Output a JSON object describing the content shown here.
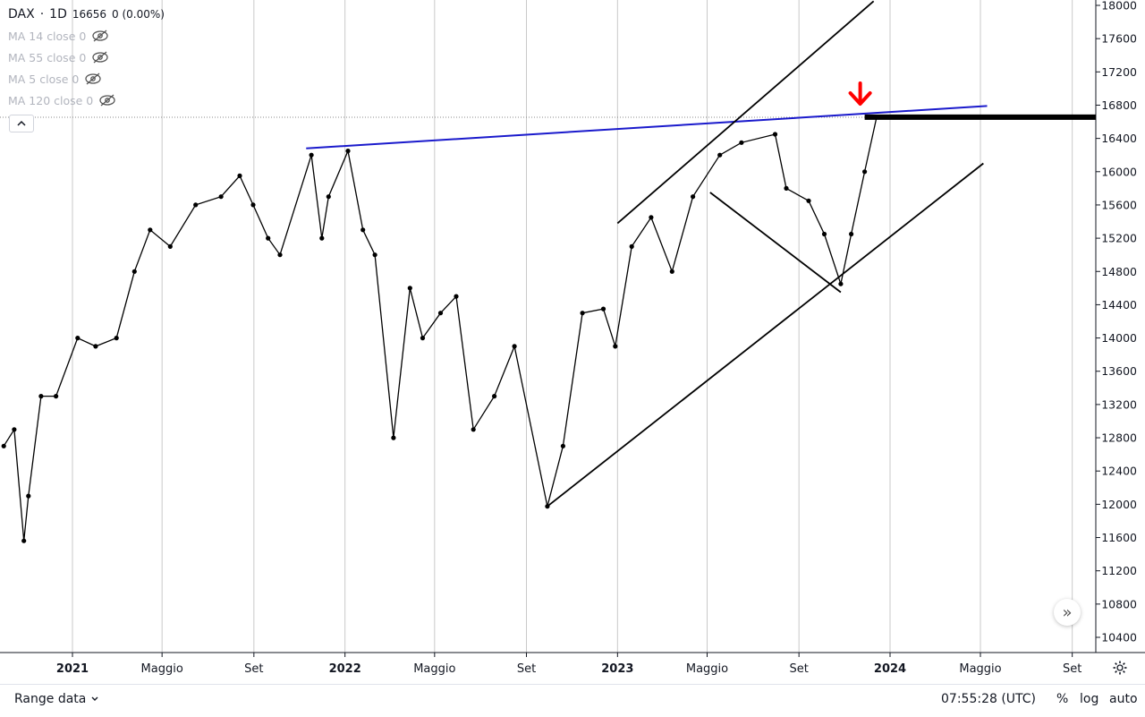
{
  "legend": {
    "symbol": "DAX",
    "separator": "·",
    "interval": "1D",
    "price": "16656",
    "change": "0 (0.00%)",
    "indicators": [
      {
        "label": "MA 14 close 0"
      },
      {
        "label": "MA 55 close 0"
      },
      {
        "label": "MA 5 close 0"
      },
      {
        "label": "MA 120 close 0"
      }
    ]
  },
  "bottom_bar": {
    "range_label": "Range data",
    "time": "07:55:28 (UTC)",
    "percent": "%",
    "log": "log",
    "auto": "auto"
  },
  "colors": {
    "price_line": "#000000",
    "resistance_line": "#1a1acc",
    "arrow": "#ff0000",
    "grid": "#c9c9c9",
    "legend_muted": "#b2b5be"
  },
  "chart_data": {
    "type": "line",
    "symbol": "DAX",
    "interval": "1D",
    "ylim": [
      10200,
      18000
    ],
    "y_ticks": [
      10400,
      10800,
      11200,
      11600,
      12000,
      12400,
      12800,
      13200,
      13600,
      14000,
      14400,
      14800,
      15200,
      15600,
      16000,
      16400,
      16800,
      17200,
      17600,
      18000
    ],
    "x_ticks": [
      {
        "label": "2021",
        "bold": true
      },
      {
        "label": "Maggio",
        "bold": false
      },
      {
        "label": "Set",
        "bold": false
      },
      {
        "label": "2022",
        "bold": true
      },
      {
        "label": "Maggio",
        "bold": false
      },
      {
        "label": "Set",
        "bold": false
      },
      {
        "label": "2023",
        "bold": true
      },
      {
        "label": "Maggio",
        "bold": false
      },
      {
        "label": "Set",
        "bold": false
      },
      {
        "label": "2024",
        "bold": true
      },
      {
        "label": "Maggio",
        "bold": false
      },
      {
        "label": "Set",
        "bold": false
      }
    ],
    "grid": true,
    "series": [
      {
        "x": [
          "2020-10-01",
          "2020-10-15",
          "2020-10-28",
          "2020-11-03",
          "2020-11-20",
          "2020-12-10",
          "2021-01-08",
          "2021-02-01",
          "2021-03-01",
          "2021-03-25",
          "2021-04-15",
          "2021-05-12",
          "2021-06-15",
          "2021-07-19",
          "2021-08-13",
          "2021-08-31",
          "2021-09-20",
          "2021-10-06",
          "2021-11-17",
          "2021-12-01",
          "2021-12-10",
          "2022-01-05",
          "2022-01-25",
          "2022-02-10",
          "2022-03-07",
          "2022-03-29",
          "2022-04-15",
          "2022-05-09",
          "2022-05-30",
          "2022-06-22",
          "2022-07-20",
          "2022-08-16",
          "2022-09-29",
          "2022-10-20",
          "2022-11-15",
          "2022-12-13",
          "2022-12-29",
          "2023-01-20",
          "2023-02-15",
          "2023-03-15",
          "2023-04-12",
          "2023-05-18",
          "2023-06-16",
          "2023-07-31",
          "2023-08-15",
          "2023-09-14",
          "2023-10-05",
          "2023-10-27",
          "2023-11-10",
          "2023-11-28",
          "2023-12-14"
        ],
        "y": [
          12700,
          12900,
          11560,
          12100,
          13300,
          13300,
          14000,
          13900,
          14000,
          14800,
          15300,
          15100,
          15600,
          15700,
          15950,
          15600,
          15200,
          15000,
          16200,
          15200,
          15700,
          16250,
          15300,
          15000,
          12800,
          14600,
          14000,
          14300,
          14500,
          12900,
          13300,
          13900,
          11975,
          12700,
          14300,
          14350,
          13900,
          15100,
          15450,
          14800,
          15700,
          16200,
          16350,
          16450,
          15800,
          15650,
          15250,
          14650,
          15250,
          16000,
          16656
        ]
      }
    ],
    "trendlines": [
      {
        "name": "resistance",
        "from": {
          "x": "2021-11-10",
          "y": 16280
        },
        "to": {
          "x": "2024-05-10",
          "y": 16790
        }
      },
      {
        "name": "channel-upper",
        "from": {
          "x": "2023-01-01",
          "y": 15380
        },
        "to": {
          "x": "2023-12-10",
          "y": 18050
        }
      },
      {
        "name": "channel-lower",
        "from": {
          "x": "2022-09-29",
          "y": 11975
        },
        "to": {
          "x": "2024-05-05",
          "y": 16100
        }
      },
      {
        "name": "flag-upper",
        "from": {
          "x": "2023-05-05",
          "y": 15750
        },
        "to": {
          "x": "2023-10-27",
          "y": 14550
        }
      }
    ],
    "horizontal_level": {
      "y": 16656,
      "from": "2023-11-28"
    },
    "signal_arrow": {
      "x": "2023-11-22",
      "direction": "down"
    }
  }
}
